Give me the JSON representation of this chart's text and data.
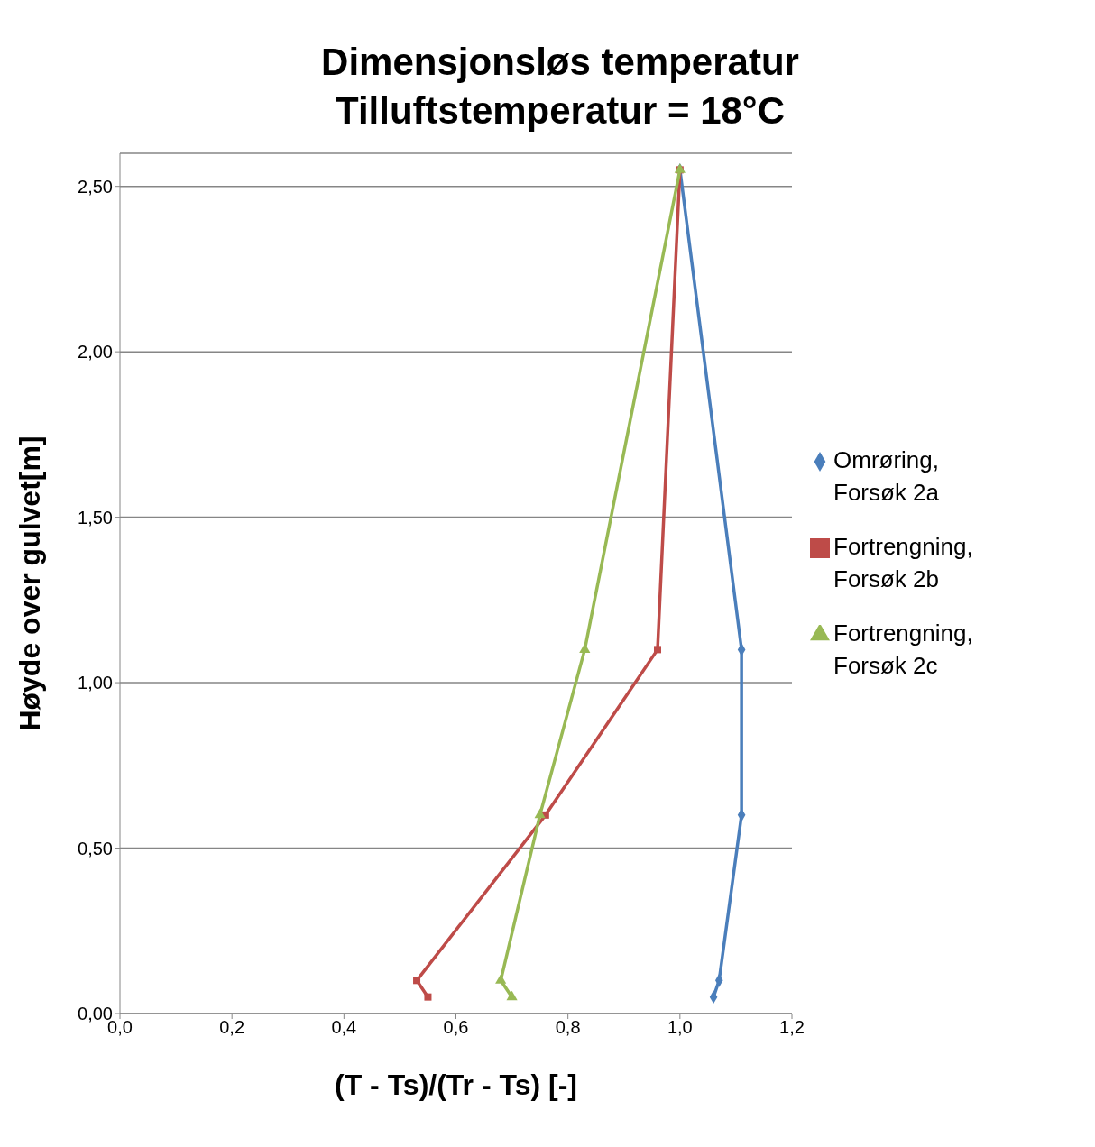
{
  "chart_data": {
    "type": "line",
    "title": "Dimensjonsløs temperatur",
    "subtitle": "Tilluftstemperatur = 18°C",
    "xlabel": "(T - Ts)/(Tr  - Ts) [-]",
    "ylabel": "Høyde over gulvet[m]",
    "xlim": [
      0,
      1.2
    ],
    "xticks": [
      {
        "value": 0,
        "label": "0,0"
      },
      {
        "value": 0.2,
        "label": "0,2"
      },
      {
        "value": 0.4,
        "label": "0,4"
      },
      {
        "value": 0.6,
        "label": "0,6"
      },
      {
        "value": 0.8,
        "label": "0,8"
      },
      {
        "value": 1,
        "label": "1,0"
      },
      {
        "value": 1.2,
        "label": "1,2"
      }
    ],
    "ylim": [
      0,
      2.6
    ],
    "yticks": [
      {
        "value": 0,
        "label": "0,00"
      },
      {
        "value": 0.5,
        "label": "0,50"
      },
      {
        "value": 1,
        "label": "1,00"
      },
      {
        "value": 1.5,
        "label": "1,50"
      },
      {
        "value": 2,
        "label": "2,00"
      },
      {
        "value": 2.5,
        "label": "2,50"
      }
    ],
    "grid": "y",
    "legend": "right",
    "line_style": "solid",
    "series": [
      {
        "name": "Omrøring, Forsøk 2a",
        "color": "#4a7ebb",
        "marker": "diamond",
        "x": [
          1.06,
          1.07,
          1.11,
          1.11,
          1.0
        ],
        "values": [
          0.05,
          0.1,
          0.6,
          1.1,
          2.55
        ]
      },
      {
        "name": "Fortrengning, Forsøk 2b",
        "color": "#be4b48",
        "marker": "square",
        "x": [
          0.55,
          0.53,
          0.76,
          0.96,
          1.0
        ],
        "values": [
          0.05,
          0.1,
          0.6,
          1.1,
          2.55
        ]
      },
      {
        "name": "Fortrengning, Forsøk 2c",
        "color": "#98b954",
        "marker": "triangle",
        "x": [
          0.7,
          0.68,
          0.75,
          0.83,
          1.0
        ],
        "values": [
          0.05,
          0.1,
          0.6,
          1.1,
          2.55
        ]
      }
    ]
  }
}
